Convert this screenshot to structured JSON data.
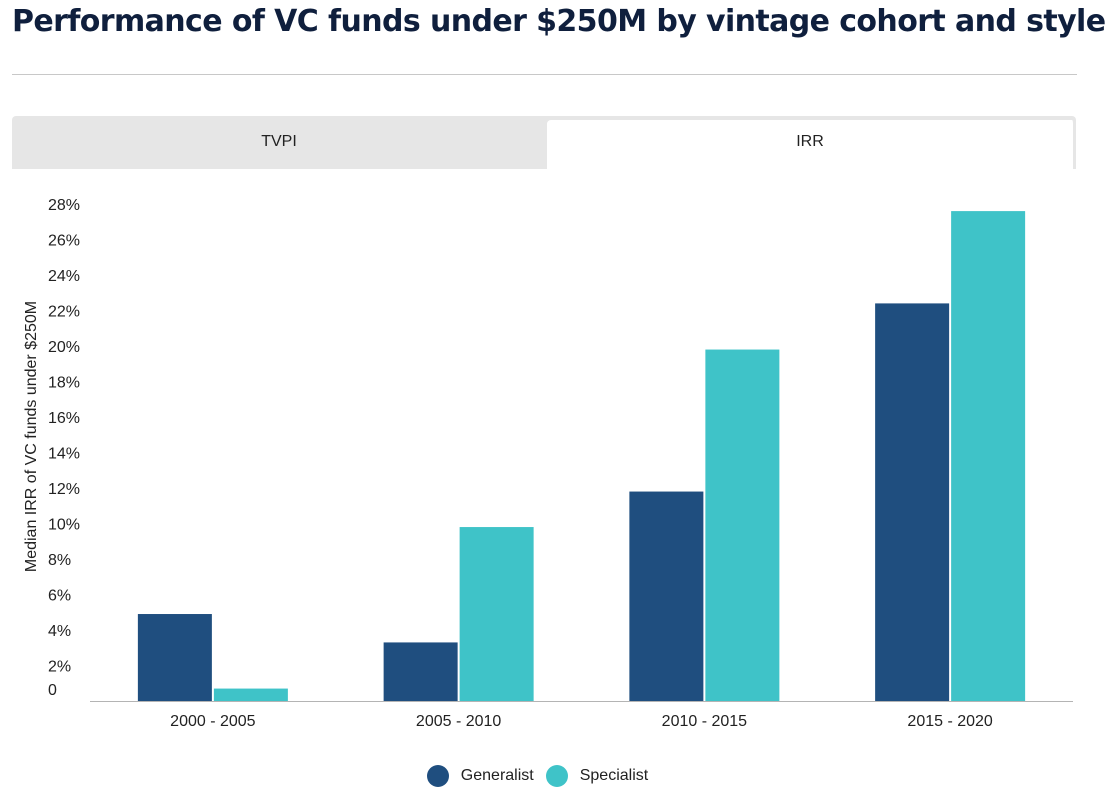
{
  "title": "Performance of VC funds under $250M by vintage cohort and style",
  "tabs": [
    {
      "label": "TVPI",
      "active": false
    },
    {
      "label": "IRR",
      "active": true
    }
  ],
  "colors": {
    "generalist": "#1f4e7f",
    "specialist": "#3fc3c8",
    "axis": "#b4b4b4",
    "text": "#222222"
  },
  "chart_data": {
    "type": "bar",
    "ylabel": "Median IRR of VC funds under $250M",
    "xlabel": "",
    "ylim": [
      0,
      28
    ],
    "yticks": [
      "0",
      "2%",
      "4%",
      "6%",
      "8%",
      "10%",
      "12%",
      "14%",
      "16%",
      "18%",
      "20%",
      "22%",
      "24%",
      "26%",
      "28%"
    ],
    "categories": [
      "2000 - 2005",
      "2005 - 2010",
      "2010 - 2015",
      "2015 - 2020"
    ],
    "series": [
      {
        "name": "Generalist",
        "values": [
          4.9,
          3.3,
          11.8,
          22.4
        ]
      },
      {
        "name": "Specialist",
        "values": [
          0.7,
          9.8,
          19.8,
          27.6
        ]
      }
    ],
    "grid": false,
    "legend": "bottom-center"
  }
}
